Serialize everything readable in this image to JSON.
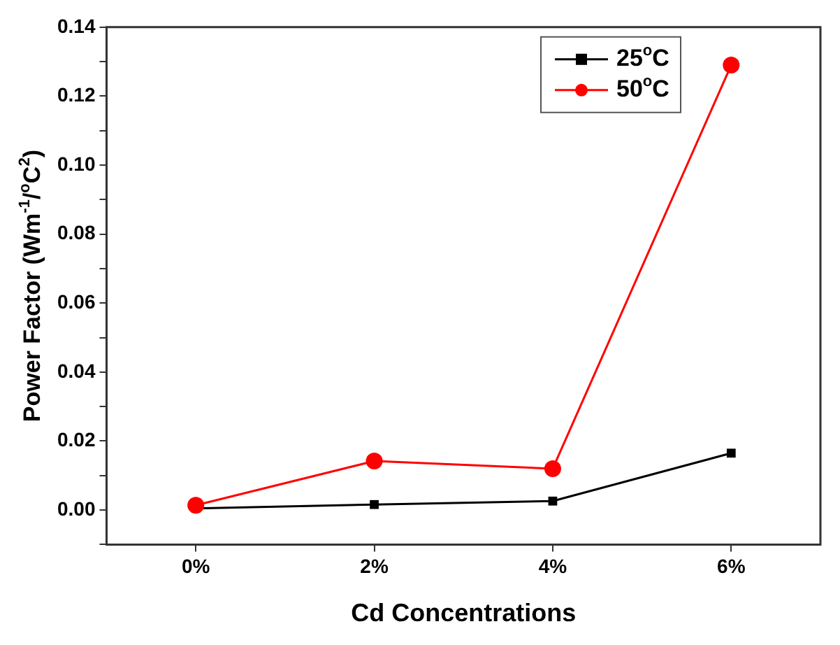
{
  "chart_data": {
    "type": "line",
    "xlabel": "Cd Concentrations",
    "ylabel": "Power Factor (Wm$^{-1}$/$^{o}$C$^{2}$)",
    "categories": [
      "0%",
      "2%",
      "4%",
      "6%"
    ],
    "series": [
      {
        "name": "25$^{o}$C",
        "color": "#000000",
        "marker": "square",
        "values": [
          0.0005,
          0.0016,
          0.0026,
          0.0165
        ]
      },
      {
        "name": "50$^{o}$C",
        "color": "#ff0000",
        "marker": "circle",
        "values": [
          0.0014,
          0.0142,
          0.012,
          0.129
        ]
      }
    ],
    "ylim": [
      -0.01,
      0.14
    ],
    "yticks": [
      {
        "value": -0.01,
        "label": null
      },
      "0.00",
      {
        "value": 0.01,
        "label": null
      },
      {
        "value": 0.02,
        "label": "0.02"
      },
      {
        "value": 0.03,
        "label": null
      },
      {
        "value": 0.04,
        "label": "0.04"
      },
      {
        "value": 0.05,
        "label": null
      },
      {
        "value": 0.06,
        "label": "0.06"
      },
      {
        "value": 0.07,
        "label": null
      },
      {
        "value": 0.08,
        "label": "0.08"
      },
      {
        "value": 0.09,
        "label": null
      },
      {
        "value": 0.1,
        "label": "0.10"
      },
      {
        "value": 0.11,
        "label": null
      },
      {
        "value": 0.12,
        "label": "0.12"
      },
      {
        "value": 0.13,
        "label": null
      },
      {
        "value": 0.14,
        "label": "0.14"
      }
    ],
    "grid": false,
    "legend": "top right",
    "line_style": "solid"
  }
}
